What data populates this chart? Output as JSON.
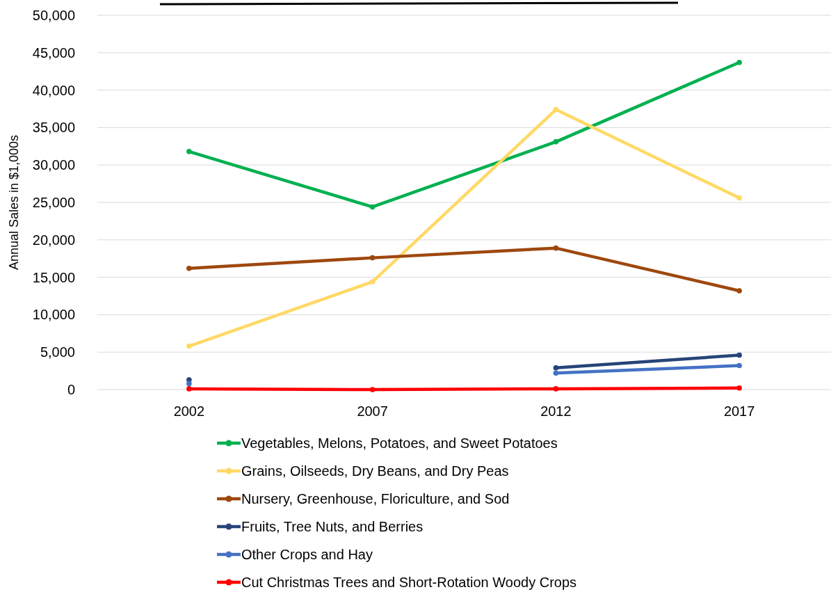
{
  "chart_data": {
    "type": "line",
    "ylabel": "Annual Sales in $1,000s",
    "categories": [
      "2002",
      "2007",
      "2012",
      "2017"
    ],
    "ylim": [
      0,
      50000
    ],
    "yticks": [
      {
        "value": 0,
        "label": "0"
      },
      {
        "value": 5000,
        "label": "5,000"
      },
      {
        "value": 10000,
        "label": "10,000"
      },
      {
        "value": 15000,
        "label": "15,000"
      },
      {
        "value": 20000,
        "label": "20,000"
      },
      {
        "value": 25000,
        "label": "25,000"
      },
      {
        "value": 30000,
        "label": "30,000"
      },
      {
        "value": 35000,
        "label": "35,000"
      },
      {
        "value": 40000,
        "label": "40,000"
      },
      {
        "value": 45000,
        "label": "45,000"
      },
      {
        "value": 50000,
        "label": "50,000"
      }
    ],
    "grid": "y",
    "legend": "bottom",
    "marker": "circle",
    "series": [
      {
        "name": "Vegetables, Melons, Potatoes, and Sweet Potatoes",
        "color": "#00b050",
        "values": [
          31800,
          24400,
          33100,
          43700
        ]
      },
      {
        "name": "Grains, Oilseeds, Dry Beans, and Dry Peas",
        "color": "#ffd966",
        "values": [
          5800,
          14400,
          37400,
          25600
        ]
      },
      {
        "name": "Nursery, Greenhouse, Floriculture, and Sod",
        "color": "#9e480e",
        "values": [
          16200,
          17600,
          18900,
          13200
        ]
      },
      {
        "name": "Fruits, Tree Nuts, and Berries",
        "color": "#264478",
        "values": [
          1300,
          null,
          2900,
          4600
        ]
      },
      {
        "name": "Other Crops and Hay",
        "color": "#4472c4",
        "values": [
          800,
          null,
          2200,
          3200
        ]
      },
      {
        "name": "Cut Christmas Trees and Short-Rotation Woody Crops",
        "color": "#ff0000",
        "values": [
          100,
          0,
          100,
          200
        ]
      }
    ]
  }
}
